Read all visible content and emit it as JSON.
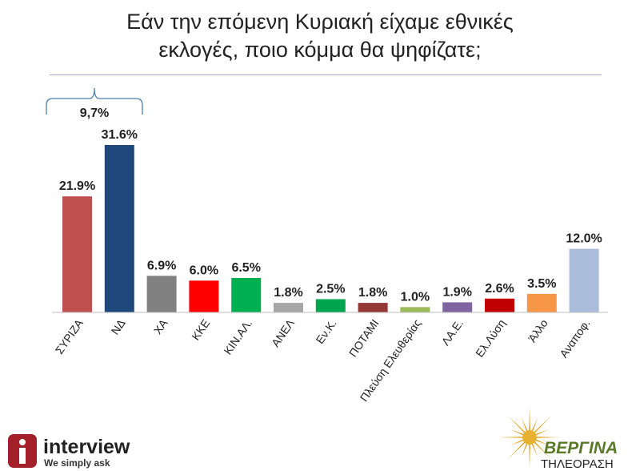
{
  "title_line1": "Εάν την επόμενη Κυριακή είχαμε εθνικές",
  "title_line2": "εκλογές, ποιο κόμμα θα ψηφίζατε;",
  "chart_data": {
    "type": "bar",
    "categories": [
      "ΣΥΡΙΖΑ",
      "ΝΔ",
      "ΧΑ",
      "ΚΚΕ",
      "ΚΙΝ.ΑΛ.",
      "ΑΝΕΛ",
      "Εν.Κ.",
      "ΠΟΤΑΜΙ",
      "Πλεύση Ελευθερίας",
      "ΛΑ.Ε.",
      "Ελ.Λύση",
      "Άλλο",
      "Αναποφ."
    ],
    "values": [
      21.9,
      31.6,
      6.9,
      6.0,
      6.5,
      1.8,
      2.5,
      1.8,
      1.0,
      1.9,
      2.6,
      3.5,
      12.0
    ],
    "value_labels": [
      "21.9%",
      "31.6%",
      "6.9%",
      "6.0%",
      "6.5%",
      "1.8%",
      "2.5%",
      "1.8%",
      "1.0%",
      "1.9%",
      "2.6%",
      "3.5%",
      "12.0%"
    ],
    "colors": [
      "#c0504d",
      "#1f497d",
      "#808080",
      "#ff0000",
      "#00b050",
      "#a6a6a6",
      "#00a550",
      "#953735",
      "#9bbb59",
      "#8064a2",
      "#c00000",
      "#f79646",
      "#a9bcd9"
    ],
    "ylim": [
      0,
      33
    ],
    "annotation": {
      "text": "9,7%",
      "between": [
        "ΣΥΡΙΖΑ",
        "ΝΔ"
      ]
    }
  },
  "logos": {
    "interview_name": "interview",
    "interview_tagline": "We simply ask",
    "vergina_name": "ΒΕΡΓΙΝΑ",
    "vergina_sub": "ΤΗΛΕΟΡΑΣΗ"
  }
}
